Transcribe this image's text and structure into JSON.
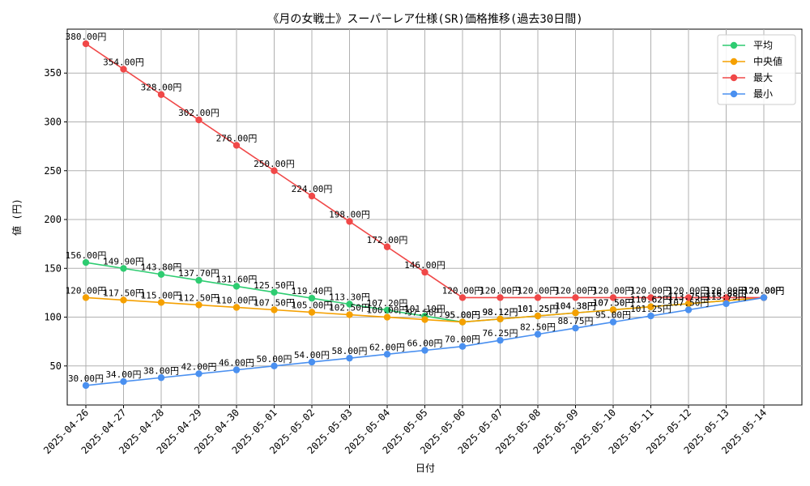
{
  "chart_data": {
    "type": "line",
    "title": "《月の女戦士》スーパーレア仕様(SR)価格推移(過去30日間)",
    "xlabel": "日付",
    "ylabel": "値 (円)",
    "ylim": [
      10,
      395
    ],
    "yticks": [
      50,
      100,
      150,
      200,
      250,
      300,
      350
    ],
    "grid": true,
    "legend_position": "top-right",
    "value_suffix": "円",
    "x": [
      "2025-04-26",
      "2025-04-27",
      "2025-04-28",
      "2025-04-29",
      "2025-04-30",
      "2025-05-01",
      "2025-05-02",
      "2025-05-03",
      "2025-05-04",
      "2025-05-05",
      "2025-05-06",
      "2025-05-07",
      "2025-05-08",
      "2025-05-09",
      "2025-05-10",
      "2025-05-11",
      "2025-05-12",
      "2025-05-13",
      "2025-05-14"
    ],
    "series": [
      {
        "name": "平均",
        "color": "#2ecc71",
        "values": [
          156.0,
          149.9,
          143.8,
          137.7,
          131.6,
          125.5,
          119.4,
          113.3,
          107.2,
          101.1,
          95.0,
          98.12,
          101.25,
          104.38,
          107.5,
          110.62,
          113.75,
          116.88,
          120.0
        ]
      },
      {
        "name": "中央値",
        "color": "#f5a000",
        "values": [
          120.0,
          117.5,
          115.0,
          112.5,
          110.0,
          107.5,
          105.0,
          102.5,
          100.0,
          97.5,
          95.0,
          98.12,
          101.25,
          104.38,
          107.5,
          110.62,
          113.75,
          116.88,
          120.0
        ]
      },
      {
        "name": "最大",
        "color": "#f04848",
        "values": [
          380.0,
          354.0,
          328.0,
          302.0,
          276.0,
          250.0,
          224.0,
          198.0,
          172.0,
          146.0,
          120.0,
          120.0,
          120.0,
          120.0,
          120.0,
          120.0,
          120.0,
          120.0,
          120.0
        ]
      },
      {
        "name": "最小",
        "color": "#4a90f0",
        "values": [
          30.0,
          34.0,
          38.0,
          42.0,
          46.0,
          50.0,
          54.0,
          58.0,
          62.0,
          66.0,
          70.0,
          76.25,
          82.5,
          88.75,
          95.0,
          101.25,
          107.5,
          113.75,
          120.0
        ]
      }
    ]
  }
}
